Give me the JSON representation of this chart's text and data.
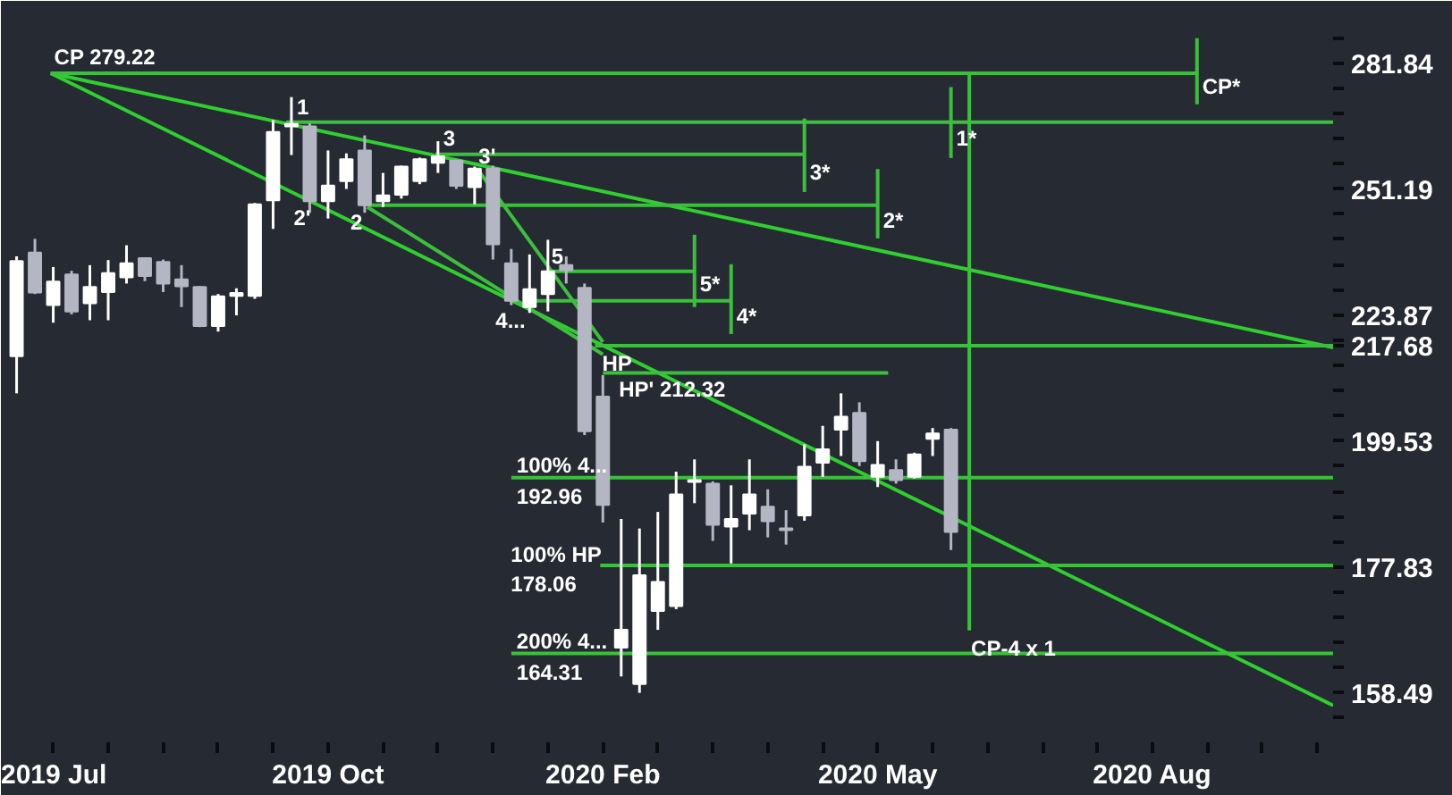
{
  "chart_data": {
    "type": "candlestick",
    "log": "y",
    "x": [
      "2019-06-24",
      "2019-07-01",
      "2019-07-08",
      "2019-07-15",
      "2019-07-22",
      "2019-07-29",
      "2019-08-05",
      "2019-08-12",
      "2019-08-19",
      "2019-08-26",
      "2019-09-02",
      "2019-09-09",
      "2019-09-16",
      "2019-09-23",
      "2019-09-30",
      "2019-10-07",
      "2019-10-14",
      "2019-10-21",
      "2019-10-28",
      "2019-11-04",
      "2019-11-11",
      "2019-11-18",
      "2019-11-25",
      "2019-12-02",
      "2019-12-09",
      "2019-12-16",
      "2019-12-23",
      "2019-12-30",
      "2020-01-06",
      "2020-01-13",
      "2020-01-20",
      "2020-01-27",
      "2020-02-03",
      "2020-02-10",
      "2020-02-17",
      "2020-02-24",
      "2020-03-02",
      "2020-03-09",
      "2020-03-16",
      "2020-03-23",
      "2020-03-30",
      "2020-04-06",
      "2020-04-13",
      "2020-04-20",
      "2020-04-27",
      "2020-05-04",
      "2020-05-11",
      "2020-05-18",
      "2020-05-25",
      "2020-06-01",
      "2020-06-08",
      "2020-06-15"
    ],
    "ohlc": [
      [
        215.6,
        236.2,
        208.4,
        235.2
      ],
      [
        237.0,
        240.0,
        228.2,
        228.5
      ],
      [
        225.9,
        233.9,
        222.3,
        230.8
      ],
      [
        232.3,
        233.1,
        224.0,
        224.6
      ],
      [
        226.3,
        234.3,
        222.8,
        229.7
      ],
      [
        228.6,
        235.4,
        222.8,
        232.6
      ],
      [
        231.7,
        238.6,
        230.4,
        234.7
      ],
      [
        235.8,
        236.0,
        230.9,
        232.0
      ],
      [
        235.0,
        235.5,
        228.6,
        230.4
      ],
      [
        231.3,
        234.3,
        225.5,
        229.8
      ],
      [
        229.7,
        229.9,
        221.4,
        221.6
      ],
      [
        221.6,
        228.2,
        220.5,
        227.7
      ],
      [
        227.8,
        229.4,
        223.8,
        228.4
      ],
      [
        227.8,
        248.0,
        227.2,
        247.7
      ],
      [
        248.6,
        267.5,
        242.2,
        264.6
      ],
      [
        266.0,
        273.2,
        259.1,
        266.6
      ],
      [
        266.0,
        266.7,
        245.8,
        248.4
      ],
      [
        248.4,
        260.2,
        244.5,
        252.0
      ],
      [
        253.0,
        259.5,
        251.2,
        258.1
      ],
      [
        260.2,
        263.8,
        245.8,
        247.5
      ],
      [
        248.4,
        254.9,
        247.1,
        249.7
      ],
      [
        249.9,
        256.6,
        249.0,
        256.4
      ],
      [
        253.0,
        258.5,
        252.3,
        258.1
      ],
      [
        257.3,
        262.4,
        254.9,
        258.8
      ],
      [
        257.8,
        258.0,
        251.2,
        251.9
      ],
      [
        251.6,
        256.4,
        247.7,
        255.9
      ],
      [
        255.9,
        256.6,
        235.5,
        238.8
      ],
      [
        234.7,
        237.8,
        225.9,
        226.8
      ],
      [
        225.5,
        236.6,
        224.3,
        229.2
      ],
      [
        228.2,
        239.8,
        224.6,
        233.0
      ],
      [
        234.3,
        236.2,
        230.4,
        233.2
      ],
      [
        229.5,
        230.4,
        200.6,
        201.3
      ],
      [
        207.8,
        211.9,
        185.2,
        188.2
      ],
      [
        165.2,
        185.8,
        160.9,
        167.9
      ],
      [
        159.8,
        184.2,
        158.5,
        176.5
      ],
      [
        170.8,
        187.0,
        167.9,
        175.4
      ],
      [
        171.6,
        194.0,
        171.1,
        190.0
      ],
      [
        192.2,
        196.2,
        188.5,
        192.5
      ],
      [
        191.9,
        192.3,
        182.1,
        184.8
      ],
      [
        184.5,
        191.6,
        178.4,
        185.8
      ],
      [
        186.7,
        196.2,
        183.9,
        190.0
      ],
      [
        187.9,
        190.9,
        182.7,
        185.4
      ],
      [
        184.2,
        187.3,
        181.5,
        183.9
      ],
      [
        186.4,
        198.9,
        185.5,
        194.9
      ],
      [
        195.6,
        202.3,
        193.1,
        198.0
      ],
      [
        201.6,
        208.4,
        196.8,
        204.0
      ],
      [
        204.7,
        206.7,
        195.0,
        195.9
      ],
      [
        193.1,
        199.5,
        191.3,
        195.2
      ],
      [
        194.3,
        196.2,
        191.9,
        192.5
      ],
      [
        193.1,
        197.4,
        192.8,
        197.1
      ],
      [
        199.9,
        201.9,
        196.8,
        200.9
      ],
      [
        201.6,
        201.9,
        180.6,
        183.6
      ]
    ],
    "colors": [
      "#ffffff",
      "#b4b7c3",
      "#ffffff",
      "#b4b7c3",
      "#ffffff",
      "#ffffff",
      "#ffffff",
      "#b4b7c3",
      "#b4b7c3",
      "#b4b7c3",
      "#b4b7c3",
      "#ffffff",
      "#ffffff",
      "#ffffff",
      "#ffffff",
      "#ffffff",
      "#b4b7c3",
      "#ffffff",
      "#ffffff",
      "#b4b7c3",
      "#ffffff",
      "#ffffff",
      "#ffffff",
      "#ffffff",
      "#b4b7c3",
      "#ffffff",
      "#b4b7c3",
      "#b4b7c3",
      "#ffffff",
      "#ffffff",
      "#b4b7c3",
      "#b4b7c3",
      "#b4b7c3",
      "#ffffff",
      "#ffffff",
      "#ffffff",
      "#ffffff",
      "#ffffff",
      "#b4b7c3",
      "#ffffff",
      "#ffffff",
      "#b4b7c3",
      "#b4b7c3",
      "#ffffff",
      "#ffffff",
      "#ffffff",
      "#b4b7c3",
      "#ffffff",
      "#b4b7c3",
      "#ffffff",
      "#ffffff",
      "#b4b7c3"
    ],
    "series": [
      {
        "type": "line",
        "color": "#2fcf2f",
        "x": [
          "2019-07-07",
          "2020-11-08"
        ],
        "values": [
          279.22,
          217.3
        ]
      },
      {
        "type": "line",
        "color": "#2fcf2f",
        "x": [
          "2019-07-07",
          "2020-11-08"
        ],
        "values": [
          279.22,
          156.7
        ]
      },
      {
        "type": "line",
        "color": "#3cbf3c",
        "x": [
          "2019-07-07",
          "2020-09-17"
        ],
        "values": [
          279.22,
          279.22
        ]
      },
      {
        "type": "line",
        "color": "#3cbf3c",
        "x": [
          "2020-09-17",
          "2020-09-17"
        ],
        "values": [
          288.3,
          271.4
        ]
      },
      {
        "type": "line",
        "color": "#3cbf3c",
        "x": [
          "2019-10-05",
          "2020-11-08"
        ],
        "values": [
          267.0,
          267.0
        ]
      },
      {
        "type": "line",
        "color": "#3cbf3c",
        "x": [
          "2020-06-15",
          "2020-06-15"
        ],
        "values": [
          275.7,
          258.4
        ]
      },
      {
        "type": "line",
        "color": "#3cbf3c",
        "x": [
          "2020-06-22",
          "2020-06-22"
        ],
        "values": [
          279.22,
          167.8
        ]
      },
      {
        "type": "line",
        "color": "#3cbf3c",
        "x": [
          "2019-12-01",
          "2020-04-20"
        ],
        "values": [
          259.3,
          259.3
        ]
      },
      {
        "type": "line",
        "color": "#3cbf3c",
        "x": [
          "2020-04-20",
          "2020-04-20"
        ],
        "values": [
          267.9,
          250.5
        ]
      },
      {
        "type": "line",
        "color": "#3cbf3c",
        "x": [
          "2019-11-05",
          "2020-05-18"
        ],
        "values": [
          247.5,
          247.5
        ]
      },
      {
        "type": "line",
        "color": "#3cbf3c",
        "x": [
          "2020-05-18",
          "2020-05-18"
        ],
        "values": [
          255.8,
          240.1
        ]
      },
      {
        "type": "line",
        "color": "#3cbf3c",
        "x": [
          "2020-01-14",
          "2020-03-09"
        ],
        "values": [
          233.0,
          233.0
        ]
      },
      {
        "type": "line",
        "color": "#3cbf3c",
        "x": [
          "2020-03-09",
          "2020-03-09"
        ],
        "values": [
          240.9,
          225.5
        ]
      },
      {
        "type": "line",
        "color": "#3cbf3c",
        "x": [
          "2020-01-04",
          "2020-03-23"
        ],
        "values": [
          226.8,
          226.8
        ]
      },
      {
        "type": "line",
        "color": "#3cbf3c",
        "x": [
          "2020-03-23",
          "2020-03-23"
        ],
        "values": [
          234.5,
          220.0
        ]
      },
      {
        "type": "line",
        "color": "#3cbf3c",
        "x": [
          "2020-01-31",
          "2020-11-08"
        ],
        "values": [
          217.68,
          217.68
        ]
      },
      {
        "type": "line",
        "color": "#3cbf3c",
        "x": [
          "2020-02-03",
          "2020-05-22"
        ],
        "values": [
          212.32,
          212.32
        ]
      },
      {
        "type": "line",
        "color": "#3cbf3c",
        "x": [
          "2019-12-30",
          "2020-11-08"
        ],
        "values": [
          192.96,
          192.96
        ]
      },
      {
        "type": "line",
        "color": "#3cbf3c",
        "x": [
          "2020-02-02",
          "2020-11-08"
        ],
        "values": [
          178.06,
          178.06
        ]
      },
      {
        "type": "line",
        "color": "#3cbf3c",
        "x": [
          "2019-12-30",
          "2020-11-08"
        ],
        "values": [
          164.31,
          164.31
        ]
      },
      {
        "type": "line",
        "color": "#3cbf3c",
        "x": [
          "2019-12-17",
          "2020-02-03"
        ],
        "values": [
          255.9,
          218.4
        ]
      },
      {
        "type": "line",
        "color": "#3cbf3c",
        "x": [
          "2019-11-05",
          "2020-02-03"
        ],
        "values": [
          247.1,
          215.95
        ]
      }
    ],
    "annotations": [
      {
        "text": "CP 279.22",
        "x": "2019-07-07",
        "y": 279.22
      },
      {
        "text": "1",
        "x": "2019-10-07",
        "y": 273.2
      },
      {
        "text": "2'",
        "x": "2019-10-14",
        "y": 245.8
      },
      {
        "text": "2",
        "x": "2019-11-04",
        "y": 245.8
      },
      {
        "text": "3",
        "x": "2019-12-02",
        "y": 262.4
      },
      {
        "text": "3'",
        "x": "2019-12-23",
        "y": 256.6
      },
      {
        "text": "4...",
        "x": "2020-01-06",
        "y": 224.3
      },
      {
        "text": "5",
        "x": "2020-01-13",
        "y": 239.8
      },
      {
        "text": "HP",
        "x": "2020-01-31",
        "y": 217.68
      },
      {
        "text": "HP' 212.32",
        "x": "2020-02-03",
        "y": 212.32
      },
      {
        "text": "5*",
        "x": "2020-03-09",
        "y": 225.5
      },
      {
        "text": "4*",
        "x": "2020-03-23",
        "y": 220.0
      },
      {
        "text": "3*",
        "x": "2020-04-20",
        "y": 250.5
      },
      {
        "text": "2*",
        "x": "2020-05-18",
        "y": 240.1
      },
      {
        "text": "1*",
        "x": "2020-06-15",
        "y": 258.4
      },
      {
        "text": "CP*",
        "x": "2020-09-17",
        "y": 271.4
      },
      {
        "text": "100%  4...",
        "x": "2019-12-30",
        "y": 192.96
      },
      {
        "text": "192.96",
        "x": "2019-12-30",
        "y": 192.96
      },
      {
        "text": "100% HP",
        "x": "2020-02-02",
        "y": 178.06
      },
      {
        "text": "178.06",
        "x": "2020-02-02",
        "y": 178.06
      },
      {
        "text": "200%  4...",
        "x": "2019-12-30",
        "y": 164.31
      },
      {
        "text": "164.31",
        "x": "2019-12-30",
        "y": 164.31
      },
      {
        "text": "CP-4 x 1",
        "x": "2020-06-22",
        "y": 167.8
      }
    ],
    "xlim": [
      "2019-06-18",
      "2020-11-08"
    ],
    "xticks": [
      {
        "value": "2019-07-08",
        "label": "2019 Jul"
      },
      {
        "value": "2019-07-29",
        "label": null
      },
      {
        "value": "2019-08-19",
        "label": null
      },
      {
        "value": "2019-09-09",
        "label": null
      },
      {
        "value": "2019-09-30",
        "label": null
      },
      {
        "value": "2019-10-21",
        "label": "2019 Oct"
      },
      {
        "value": "2019-11-11",
        "label": null
      },
      {
        "value": "2019-12-02",
        "label": null
      },
      {
        "value": "2019-12-23",
        "label": null
      },
      {
        "value": "2020-01-13",
        "label": null
      },
      {
        "value": "2020-02-03",
        "label": "2020 Feb"
      },
      {
        "value": "2020-02-24",
        "label": null
      },
      {
        "value": "2020-03-16",
        "label": null
      },
      {
        "value": "2020-04-06",
        "label": null
      },
      {
        "value": "2020-04-27",
        "label": null
      },
      {
        "value": "2020-05-18",
        "label": "2020 May"
      },
      {
        "value": "2020-06-08",
        "label": null
      },
      {
        "value": "2020-06-29",
        "label": null
      },
      {
        "value": "2020-07-20",
        "label": null
      },
      {
        "value": "2020-08-10",
        "label": null
      },
      {
        "value": "2020-08-31",
        "label": "2020 Aug"
      },
      {
        "value": "2020-09-21",
        "label": null
      },
      {
        "value": "2020-10-12",
        "label": null
      },
      {
        "value": "2020-11-02",
        "label": null
      }
    ],
    "ylim": [
      151.5,
      298.3
    ],
    "yticks": [
      {
        "value": 288.4,
        "label": null
      },
      281.84,
      {
        "value": 275.4,
        "label": null
      },
      {
        "value": 269.2,
        "label": null
      },
      {
        "value": 263.0,
        "label": null
      },
      {
        "value": 257.0,
        "label": null
      },
      251.19,
      {
        "value": 245.5,
        "label": null
      },
      {
        "value": 239.9,
        "label": null
      },
      {
        "value": 234.4,
        "label": null
      },
      {
        "value": 229.1,
        "label": null
      },
      223.87,
      {
        "value": 218.8,
        "label": null
      },
      217.68,
      {
        "value": 213.8,
        "label": null
      },
      {
        "value": 208.9,
        "label": null
      },
      {
        "value": 204.2,
        "label": null
      },
      199.53,
      {
        "value": 195.0,
        "label": null
      },
      {
        "value": 190.5,
        "label": null
      },
      {
        "value": 186.2,
        "label": null
      },
      {
        "value": 182.0,
        "label": null
      },
      177.83,
      {
        "value": 173.8,
        "label": null
      },
      {
        "value": 169.8,
        "label": null
      },
      {
        "value": 166.0,
        "label": null
      },
      {
        "value": 162.2,
        "label": null
      },
      158.49,
      {
        "value": 154.9,
        "label": null
      }
    ]
  }
}
